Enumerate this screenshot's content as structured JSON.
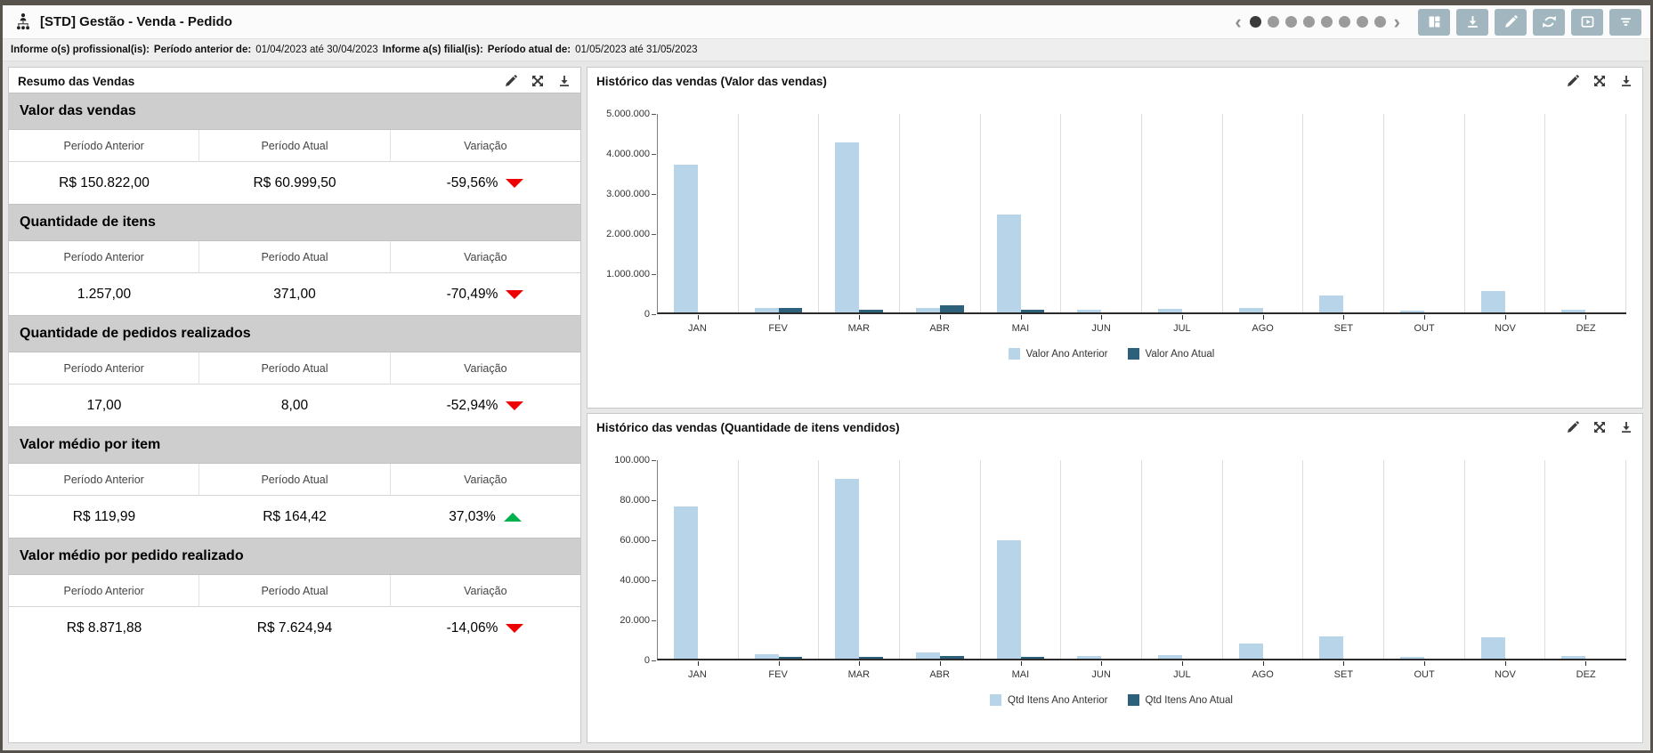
{
  "header": {
    "title": "[STD] Gestão - Venda - Pedido",
    "app_icon": "org-chart-icon",
    "pagination": {
      "total_dots": 8,
      "active_index": 0,
      "prev": "‹",
      "next": "›"
    },
    "toolbar_buttons": [
      {
        "name": "layout-button",
        "icon": "layout-grid-icon"
      },
      {
        "name": "download-button",
        "icon": "download-icon"
      },
      {
        "name": "edit-button",
        "icon": "pencil-icon"
      },
      {
        "name": "refresh-button",
        "icon": "refresh-icon"
      },
      {
        "name": "present-button",
        "icon": "presentation-icon"
      },
      {
        "name": "filter-button",
        "icon": "filter-icon"
      }
    ]
  },
  "filter_bar": {
    "segments": [
      {
        "text": "Informe o(s) profissional(is):",
        "bold": true
      },
      {
        "text": "Período anterior de:",
        "bold": true
      },
      {
        "text": "01/04/2023 até 30/04/2023",
        "bold": false
      },
      {
        "text": "Informe a(s) filial(is):",
        "bold": true
      },
      {
        "text": "Período atual de:",
        "bold": true
      },
      {
        "text": "01/05/2023 até 31/05/2023",
        "bold": false
      }
    ]
  },
  "panel_icons": [
    "pencil-icon",
    "expand-icon",
    "download-icon"
  ],
  "summary": {
    "title": "Resumo das Vendas",
    "col_headers": [
      "Período Anterior",
      "Período Atual",
      "Variação"
    ],
    "sections": [
      {
        "title": "Valor das vendas",
        "previous": "R$ 150.822,00",
        "current": "R$ 60.999,50",
        "variation": "-59,56%",
        "direction": "down"
      },
      {
        "title": "Quantidade de itens",
        "previous": "1.257,00",
        "current": "371,00",
        "variation": "-70,49%",
        "direction": "down"
      },
      {
        "title": "Quantidade de pedidos realizados",
        "previous": "17,00",
        "current": "8,00",
        "variation": "-52,94%",
        "direction": "down"
      },
      {
        "title": "Valor médio por item",
        "previous": "R$ 119,99",
        "current": "R$ 164,42",
        "variation": "37,03%",
        "direction": "up"
      },
      {
        "title": "Valor médio por pedido realizado",
        "previous": "R$ 8.871,88",
        "current": "R$ 7.624,94",
        "variation": "-14,06%",
        "direction": "down"
      }
    ]
  },
  "chart_data": [
    {
      "type": "bar",
      "title": "Histórico das vendas (Valor das vendas)",
      "categories": [
        "JAN",
        "FEV",
        "MAR",
        "ABR",
        "MAI",
        "JUN",
        "JUL",
        "AGO",
        "SET",
        "OUT",
        "NOV",
        "DEZ"
      ],
      "series": [
        {
          "name": "Valor Ano Anterior",
          "color": "#b7d4e8",
          "values": [
            3700000,
            120000,
            4250000,
            120000,
            2450000,
            70000,
            100000,
            110000,
            430000,
            50000,
            540000,
            60000
          ]
        },
        {
          "name": "Valor Ano Atual",
          "color": "#2d607b",
          "values": [
            0,
            120000,
            70000,
            170000,
            70000,
            0,
            0,
            0,
            0,
            0,
            0,
            0
          ]
        }
      ],
      "ylim": [
        0,
        5000000
      ],
      "ytick_labels": [
        "5.000.000",
        "4.000.000",
        "3.000.000",
        "2.000.000",
        "1.000.000",
        "0"
      ],
      "grid": "vertical-only",
      "legend_position": "bottom"
    },
    {
      "type": "bar",
      "title": "Histórico das vendas (Quantidade de itens vendidos)",
      "categories": [
        "JAN",
        "FEV",
        "MAR",
        "ABR",
        "MAI",
        "JUN",
        "JUL",
        "AGO",
        "SET",
        "OUT",
        "NOV",
        "DEZ"
      ],
      "series": [
        {
          "name": "Qtd Itens Ano Anterior",
          "color": "#b7d4e8",
          "values": [
            76000,
            2200,
            90000,
            3000,
            59000,
            1500,
            2000,
            7500,
            11000,
            1000,
            10500,
            1300
          ]
        },
        {
          "name": "Qtd Itens Ano Atual",
          "color": "#2d607b",
          "values": [
            0,
            800,
            800,
            1500,
            800,
            0,
            0,
            0,
            0,
            0,
            0,
            0
          ]
        }
      ],
      "ylim": [
        0,
        100000
      ],
      "ytick_labels": [
        "100.000",
        "80.000",
        "60.000",
        "40.000",
        "20.000",
        "0"
      ],
      "grid": "vertical-only",
      "legend_position": "bottom"
    }
  ],
  "colors": {
    "toolbar_button": "#a1b6bf",
    "bar_previous": "#b7d4e8",
    "bar_current": "#2d607b",
    "negative": "#ee0000",
    "positive": "#00b14e",
    "section_band": "#cecece",
    "dot_active": "#3a3a3a",
    "dot_inactive": "#9b9b9b"
  }
}
